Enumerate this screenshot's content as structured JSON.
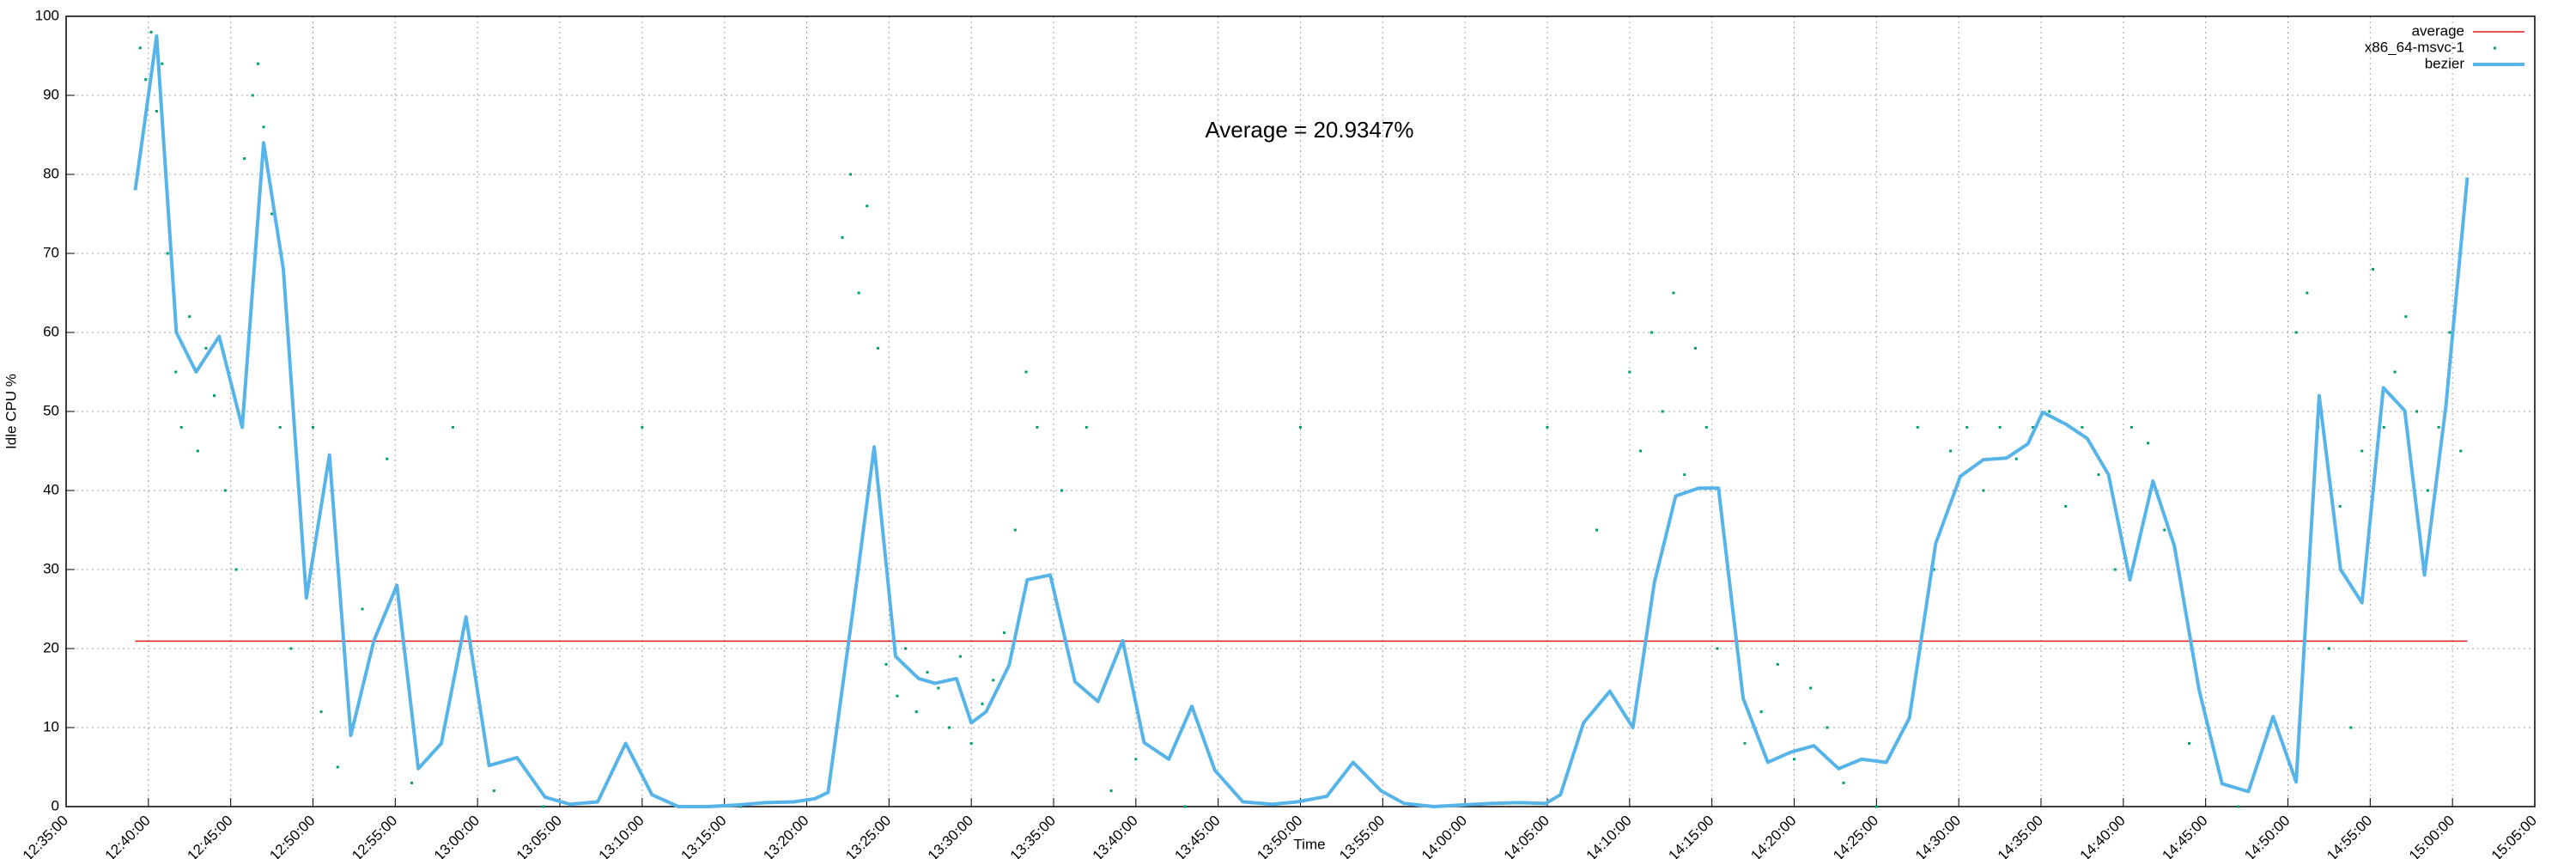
{
  "chart_data": {
    "type": "line",
    "ylabel": "Idle CPU %",
    "xlabel": "Time",
    "annotation": "Average = 20.9347%",
    "xlim": [
      "12:35:00",
      "15:05:00"
    ],
    "xticks": [
      "12:35:00",
      "12:40:00",
      "12:45:00",
      "12:50:00",
      "12:55:00",
      "13:00:00",
      "13:05:00",
      "13:10:00",
      "13:15:00",
      "13:20:00",
      "13:25:00",
      "13:30:00",
      "13:35:00",
      "13:40:00",
      "13:45:00",
      "13:50:00",
      "13:55:00",
      "14:00:00",
      "14:05:00",
      "14:10:00",
      "14:15:00",
      "14:20:00",
      "14:25:00",
      "14:30:00",
      "14:35:00",
      "14:40:00",
      "14:45:00",
      "14:50:00",
      "14:55:00",
      "15:00:00",
      "15:05:00"
    ],
    "ylim": [
      0,
      100
    ],
    "yticks": [
      0,
      10,
      20,
      30,
      40,
      50,
      60,
      70,
      80,
      90,
      100
    ],
    "grid": true,
    "legend": "upper right",
    "series": [
      {
        "name": "average",
        "color": "#e41a1c",
        "style": "line",
        "x": [
          "12:39:12",
          "15:00:54"
        ],
        "values": [
          20.9347,
          20.9347
        ]
      },
      {
        "name": "x86_64-msvc-1",
        "color": "#009e73",
        "style": "points",
        "x": [
          "12:39:30",
          "12:39:50",
          "12:40:10",
          "12:40:30",
          "12:40:50",
          "12:41:10",
          "12:41:40",
          "12:42:00",
          "12:42:30",
          "12:43:00",
          "12:43:30",
          "12:44:00",
          "12:44:40",
          "12:45:20",
          "12:45:50",
          "12:46:20",
          "12:46:40",
          "12:47:00",
          "12:47:30",
          "12:48:00",
          "12:48:40",
          "12:49:20",
          "12:50:00",
          "12:50:30",
          "12:51:30",
          "12:53:00",
          "12:54:30",
          "12:56:00",
          "12:58:30",
          "13:01:00",
          "13:04:00",
          "13:10:00",
          "13:16:00",
          "13:22:10",
          "13:22:40",
          "13:23:10",
          "13:23:40",
          "13:24:20",
          "13:24:50",
          "13:25:30",
          "13:26:00",
          "13:26:40",
          "13:27:20",
          "13:28:00",
          "13:28:40",
          "13:29:20",
          "13:30:00",
          "13:30:40",
          "13:31:20",
          "13:32:00",
          "13:32:40",
          "13:33:20",
          "13:34:00",
          "13:35:30",
          "13:37:00",
          "13:38:30",
          "13:40:00",
          "13:43:00",
          "13:50:00",
          "13:58:00",
          "14:05:00",
          "14:08:00",
          "14:10:00",
          "14:10:40",
          "14:11:20",
          "14:12:00",
          "14:12:40",
          "14:13:20",
          "14:14:00",
          "14:14:40",
          "14:15:20",
          "14:17:00",
          "14:18:00",
          "14:19:00",
          "14:20:00",
          "14:21:00",
          "14:22:00",
          "14:23:00",
          "14:25:00",
          "14:27:30",
          "14:28:30",
          "14:29:30",
          "14:30:30",
          "14:31:30",
          "14:32:30",
          "14:33:30",
          "14:34:30",
          "14:35:30",
          "14:36:30",
          "14:37:30",
          "14:38:30",
          "14:39:30",
          "14:40:30",
          "14:41:30",
          "14:42:30",
          "14:44:00",
          "14:47:00",
          "14:50:30",
          "14:51:10",
          "14:51:50",
          "14:52:30",
          "14:53:10",
          "14:53:50",
          "14:54:30",
          "14:55:10",
          "14:55:50",
          "14:56:30",
          "14:57:10",
          "14:57:50",
          "14:58:30",
          "14:59:10",
          "14:59:50",
          "15:00:30"
        ],
        "values": [
          96,
          92,
          98,
          88,
          94,
          70,
          55,
          48,
          62,
          45,
          58,
          52,
          40,
          30,
          82,
          90,
          94,
          86,
          75,
          48,
          20,
          35,
          48,
          12,
          5,
          25,
          44,
          3,
          48,
          2,
          0,
          48,
          0,
          72,
          80,
          65,
          76,
          58,
          18,
          14,
          20,
          12,
          17,
          15,
          10,
          19,
          8,
          13,
          16,
          22,
          35,
          55,
          48,
          40,
          48,
          2,
          6,
          0,
          48,
          0,
          48,
          35,
          55,
          45,
          60,
          50,
          65,
          42,
          58,
          48,
          20,
          8,
          12,
          18,
          6,
          15,
          10,
          3,
          0,
          48,
          30,
          45,
          48,
          40,
          48,
          44,
          48,
          50,
          38,
          48,
          42,
          30,
          48,
          46,
          35,
          8,
          0,
          60,
          65,
          48,
          20,
          38,
          10,
          45,
          68,
          48,
          55,
          62,
          50,
          40,
          48,
          60,
          45
        ]
      },
      {
        "name": "bezier",
        "color": "#56b4e9",
        "style": "line",
        "x": [
          "12:39:12",
          "12:40:30",
          "12:41:42",
          "12:42:54",
          "12:44:18",
          "12:45:42",
          "12:47:00",
          "12:48:12",
          "12:49:36",
          "12:51:00",
          "12:52:18",
          "12:53:42",
          "12:55:06",
          "12:56:24",
          "12:57:48",
          "12:59:18",
          "13:00:42",
          "13:02:24",
          "13:04:06",
          "13:05:36",
          "13:07:18",
          "13:09:00",
          "13:10:36",
          "13:12:12",
          "13:14:00",
          "13:15:48",
          "13:17:30",
          "13:19:12",
          "13:20:30",
          "13:21:18",
          "13:22:48",
          "13:24:06",
          "13:25:24",
          "13:26:48",
          "13:27:48",
          "13:29:06",
          "13:30:00",
          "13:30:54",
          "13:32:18",
          "13:33:24",
          "13:34:48",
          "13:36:18",
          "13:37:42",
          "13:39:12",
          "13:40:30",
          "13:42:00",
          "13:43:24",
          "13:44:48",
          "13:46:30",
          "13:48:18",
          "13:49:48",
          "13:51:36",
          "13:53:12",
          "13:54:54",
          "13:56:18",
          "13:58:06",
          "13:59:48",
          "14:01:30",
          "14:03:18",
          "14:04:54",
          "14:05:48",
          "14:07:12",
          "14:08:48",
          "14:10:12",
          "14:11:30",
          "14:12:48",
          "14:14:12",
          "14:15:24",
          "14:16:54",
          "14:18:24",
          "14:19:48",
          "14:21:12",
          "14:22:42",
          "14:24:06",
          "14:25:36",
          "14:27:00",
          "14:28:36",
          "14:30:06",
          "14:31:30",
          "14:32:54",
          "14:34:12",
          "14:35:06",
          "14:36:30",
          "14:37:48",
          "14:39:06",
          "14:40:24",
          "14:41:48",
          "14:43:06",
          "14:44:36",
          "14:46:00",
          "14:47:36",
          "14:49:06",
          "14:50:30",
          "14:51:54",
          "14:53:12",
          "14:54:30",
          "14:55:48",
          "14:57:06",
          "14:58:18",
          "14:59:36",
          "15:00:54"
        ],
        "values": [
          78,
          97.5,
          60,
          55,
          59.5,
          48,
          84,
          68,
          26.4,
          44.5,
          9,
          21,
          28,
          4.8,
          8,
          24,
          5.2,
          6.2,
          1.2,
          0.3,
          0.6,
          8,
          1.5,
          0,
          0,
          0.2,
          0.5,
          0.6,
          1,
          1.8,
          24.7,
          45.5,
          19,
          16.2,
          15.6,
          16.2,
          10.6,
          12,
          17.9,
          28.7,
          29.3,
          15.8,
          13.3,
          21,
          8.1,
          6,
          12.7,
          4.6,
          0.6,
          0.3,
          0.6,
          1.3,
          5.6,
          2,
          0.4,
          0,
          0.2,
          0.4,
          0.5,
          0.4,
          1.5,
          10.6,
          14.6,
          10,
          28.3,
          39.3,
          40.3,
          40.3,
          13.7,
          5.6,
          6.9,
          7.7,
          4.8,
          6,
          5.6,
          11.2,
          33.3,
          41.8,
          43.9,
          44.1,
          45.9,
          49.9,
          48.4,
          46.6,
          42,
          28.7,
          41.2,
          33,
          14.8,
          2.9,
          1.9,
          11.4,
          3.1,
          52,
          30,
          25.8,
          53,
          50.1,
          29.3,
          50.7,
          79.6
        ]
      }
    ]
  }
}
